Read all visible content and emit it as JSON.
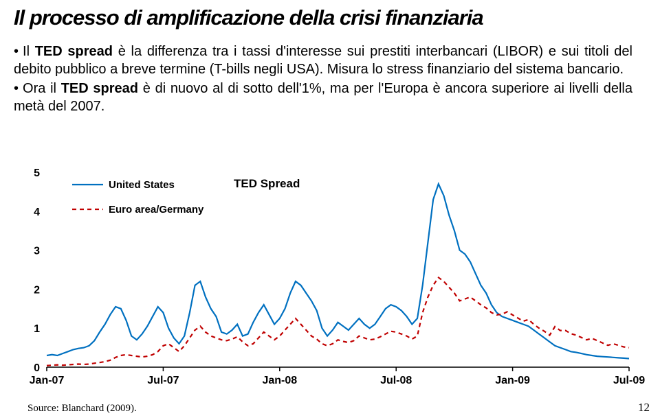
{
  "title": "Il processo di amplificazione della crisi finanziaria",
  "bullets": [
    {
      "pre": "Il ",
      "strong": "TED spread",
      "post": " è la differenza tra i tassi d'interesse sui prestiti interbancari (LIBOR) e sui titoli del debito pubblico a breve termine (T-bills negli USA). Misura lo stress finanziario del sistema bancario."
    },
    {
      "pre": "Ora il ",
      "strong": "TED spread",
      "post": " è di nuovo al di sotto dell'1%, ma per l'Europa è ancora superiore ai livelli della metà del 2007."
    }
  ],
  "chart": {
    "type": "line",
    "title": "TED Spread",
    "title_fontsize": 17,
    "legend": [
      {
        "label": "United States",
        "color": "#0070c0",
        "dash": false
      },
      {
        "label": "Euro area/Germany",
        "color": "#c00000",
        "dash": true
      }
    ],
    "ylim": [
      0,
      5
    ],
    "yticks": [
      0,
      1,
      2,
      3,
      4,
      5
    ],
    "ytick_fontsize": 16,
    "xticks": [
      "Jan-07",
      "Jul-07",
      "Jan-08",
      "Jul-08",
      "Jan-09",
      "Jul-09"
    ],
    "xtick_fontsize": 16,
    "line_width": 2.2,
    "dash_pattern": "6,5",
    "background_color": "#ffffff",
    "series": {
      "us": [
        0.3,
        0.32,
        0.3,
        0.35,
        0.4,
        0.45,
        0.48,
        0.5,
        0.55,
        0.68,
        0.9,
        1.1,
        1.35,
        1.55,
        1.5,
        1.2,
        0.8,
        0.7,
        0.85,
        1.05,
        1.3,
        1.55,
        1.4,
        1.0,
        0.75,
        0.6,
        0.8,
        1.4,
        2.1,
        2.2,
        1.8,
        1.5,
        1.3,
        0.9,
        0.85,
        0.95,
        1.1,
        0.8,
        0.85,
        1.15,
        1.4,
        1.6,
        1.35,
        1.1,
        1.25,
        1.5,
        1.9,
        2.2,
        2.1,
        1.9,
        1.7,
        1.45,
        1.0,
        0.8,
        0.95,
        1.15,
        1.05,
        0.95,
        1.1,
        1.25,
        1.1,
        1.0,
        1.1,
        1.3,
        1.5,
        1.6,
        1.55,
        1.45,
        1.3,
        1.1,
        1.25,
        2.1,
        3.2,
        4.3,
        4.7,
        4.4,
        3.9,
        3.5,
        3.0,
        2.9,
        2.7,
        2.4,
        2.1,
        1.9,
        1.6,
        1.4,
        1.3,
        1.25,
        1.2,
        1.15,
        1.1,
        1.05,
        0.95,
        0.85,
        0.75,
        0.65,
        0.55,
        0.5,
        0.45,
        0.4,
        0.38,
        0.35,
        0.32,
        0.3,
        0.28,
        0.27,
        0.26,
        0.25,
        0.24,
        0.23,
        0.22
      ],
      "eu": [
        0.04,
        0.05,
        0.06,
        0.05,
        0.06,
        0.07,
        0.08,
        0.07,
        0.08,
        0.1,
        0.12,
        0.14,
        0.18,
        0.25,
        0.3,
        0.32,
        0.3,
        0.28,
        0.26,
        0.28,
        0.32,
        0.4,
        0.55,
        0.6,
        0.5,
        0.4,
        0.55,
        0.75,
        0.95,
        1.05,
        0.9,
        0.8,
        0.75,
        0.7,
        0.68,
        0.72,
        0.78,
        0.65,
        0.55,
        0.6,
        0.75,
        0.9,
        0.8,
        0.7,
        0.8,
        0.95,
        1.1,
        1.25,
        1.1,
        0.95,
        0.8,
        0.72,
        0.6,
        0.55,
        0.6,
        0.7,
        0.66,
        0.63,
        0.68,
        0.8,
        0.75,
        0.7,
        0.72,
        0.78,
        0.85,
        0.92,
        0.9,
        0.85,
        0.8,
        0.72,
        0.8,
        1.4,
        1.8,
        2.1,
        2.3,
        2.2,
        2.05,
        1.9,
        1.7,
        1.75,
        1.8,
        1.7,
        1.6,
        1.52,
        1.4,
        1.34,
        1.36,
        1.42,
        1.34,
        1.26,
        1.18,
        1.22,
        1.1,
        1.0,
        0.92,
        0.82,
        1.04,
        0.94,
        0.94,
        0.86,
        0.82,
        0.76,
        0.7,
        0.74,
        0.68,
        0.62,
        0.56,
        0.6,
        0.56,
        0.52,
        0.5
      ]
    }
  },
  "source": "Source: Blanchard (2009).",
  "pagenum": "12"
}
